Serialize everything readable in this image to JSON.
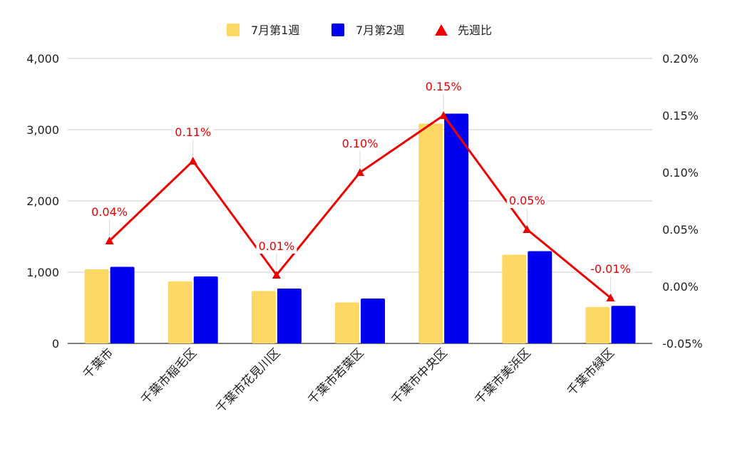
{
  "chart_data": {
    "type": "bar",
    "categories": [
      "千葉市",
      "千葉市稲毛区",
      "千葉市花見川区",
      "千葉市若葉区",
      "千葉市中央区",
      "千葉市美浜区",
      "千葉市緑区"
    ],
    "series": [
      {
        "name": "7月第1週",
        "type": "bar",
        "axis": "left",
        "color": "#fdd865",
        "values": [
          1040,
          870,
          735,
          575,
          3085,
          1245,
          510
        ]
      },
      {
        "name": "7月第2週",
        "type": "bar",
        "axis": "left",
        "color": "#0000ee",
        "values": [
          1075,
          940,
          770,
          630,
          3225,
          1295,
          528
        ]
      },
      {
        "name": "先週比",
        "type": "line",
        "axis": "right",
        "color": "#ee0000",
        "values": [
          0.0004,
          0.0011,
          0.0001,
          0.001,
          0.0015,
          0.0005,
          -0.0001
        ],
        "labels": [
          "0.04%",
          "0.11%",
          "0.01%",
          "0.10%",
          "0.15%",
          "0.05%",
          "-0.01%"
        ]
      }
    ],
    "y_left": {
      "ylim": [
        0,
        4000
      ],
      "ticks": [
        0,
        1000,
        2000,
        3000,
        4000
      ],
      "tick_labels": [
        "0",
        "1,000",
        "2,000",
        "3,000",
        "4,000"
      ]
    },
    "y_right": {
      "ylim": [
        -0.0005,
        0.002
      ],
      "ticks": [
        -0.0005,
        0,
        0.0005,
        0.001,
        0.0015,
        0.002
      ],
      "tick_labels": [
        "-0.05%",
        "0.00%",
        "0.05%",
        "0.10%",
        "0.15%",
        "0.20%"
      ]
    },
    "grid": true,
    "legend": "top-center",
    "title": "",
    "xlabel": "",
    "ylabel": ""
  }
}
